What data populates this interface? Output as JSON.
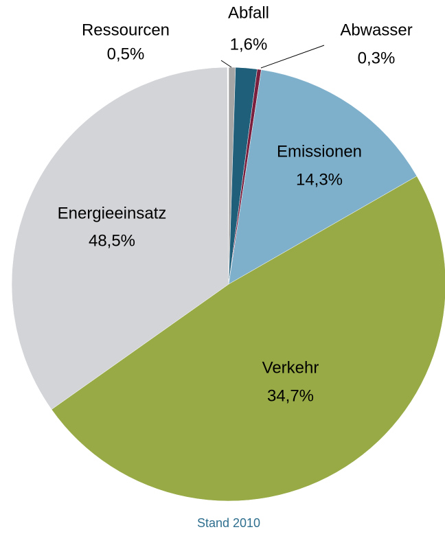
{
  "chart_data": {
    "type": "pie",
    "categories": [
      "Ressourcen",
      "Abfall",
      "Abwasser",
      "Emissionen",
      "Energieeinsatz",
      "Verkehr"
    ],
    "values": [
      0.5,
      1.6,
      0.3,
      14.3,
      48.5,
      34.7
    ],
    "value_labels": [
      "0,5%",
      "1,6%",
      "0,3%",
      "14,3%",
      "48,5%",
      "34,7%"
    ],
    "colors": [
      "#a6a6a6",
      "#1f5f7a",
      "#7a1f3d",
      "#7fb0cb",
      "#97aa45",
      "#d3d4d8"
    ],
    "note": "Stand 2010"
  }
}
